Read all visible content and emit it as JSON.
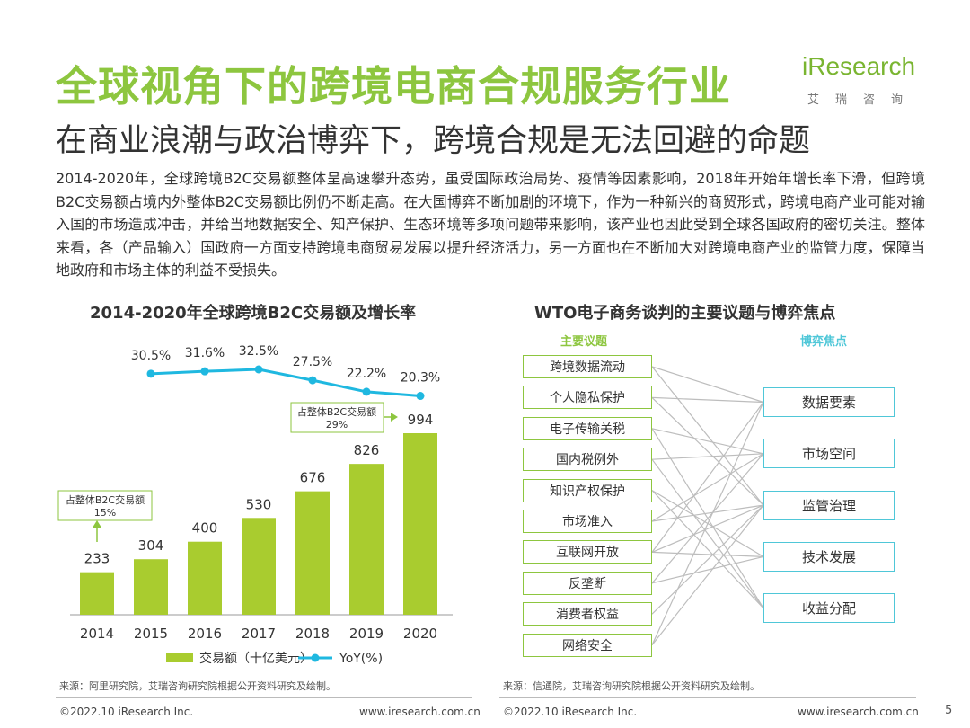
{
  "title": "全球视角下的跨境电商合规服务行业",
  "subtitle": "在商业浪潮与政治博弈下，跨境合规是无法回避的命题",
  "logo": {
    "main_i": "i",
    "main_rest": "Research",
    "sub": "艾瑞咨询"
  },
  "intro": "2014-2020年，全球跨境B2C交易额整体呈高速攀升态势，虽受国际政治局势、疫情等因素影响，2018年开始年增长率下滑，但跨境B2C交易额占境内外整体B2C交易额比例仍不断走高。在大国博弈不断加剧的环境下，作为一种新兴的商贸形式，跨境电商产业可能对输入国的市场造成冲击，并给当地数据安全、知产保护、生态环境等多项问题带来影响，该产业也因此受到全球各国政府的密切关注。整体来看，各（产品输入）国政府一方面支持跨境电商贸易发展以提升经济活力，另一方面也在不断加大对跨境电商产业的监管力度，保障当地政府和市场主体的利益不受损失。",
  "chart_data": {
    "type": "bar",
    "title": "2014-2020年全球跨境B2C交易额及增长率",
    "categories": [
      "2014",
      "2015",
      "2016",
      "2017",
      "2018",
      "2019",
      "2020"
    ],
    "series": [
      {
        "name": "交易额（十亿美元）",
        "type": "bar",
        "values": [
          233,
          304,
          400,
          530,
          676,
          826,
          994
        ],
        "labels": [
          "233",
          "304",
          "400",
          "530",
          "676",
          "826",
          "994"
        ],
        "color": "#a9cc2f"
      },
      {
        "name": "YoY(%)",
        "type": "line",
        "x": [
          "2015",
          "2016",
          "2017",
          "2018",
          "2019",
          "2020"
        ],
        "values": [
          30.5,
          31.6,
          32.5,
          27.5,
          22.2,
          20.3
        ],
        "labels": [
          "30.5%",
          "31.6%",
          "32.5%",
          "27.5%",
          "22.2%",
          "20.3%"
        ],
        "color": "#1fb8e0"
      }
    ],
    "annotations": [
      {
        "x": "2014",
        "line1": "占整体B2C交易额",
        "line2": "15%"
      },
      {
        "x": "2020",
        "line1": "占整体B2C交易额",
        "line2": "29%"
      }
    ],
    "legend_position": "bottom",
    "grid": false
  },
  "wto": {
    "title": "WTO电子商务谈判的主要议题与博弈焦点",
    "topics_header": "主要议题",
    "focus_header": "博弈焦点",
    "topics": [
      "跨境数据流动",
      "个人隐私保护",
      "电子传输关税",
      "国内税例外",
      "知识产权保护",
      "市场准入",
      "互联网开放",
      "反垄断",
      "消费者权益",
      "网络安全"
    ],
    "focus": [
      "数据要素",
      "市场空间",
      "监管治理",
      "技术发展",
      "收益分配"
    ],
    "links": [
      [
        0,
        0
      ],
      [
        0,
        2
      ],
      [
        1,
        0
      ],
      [
        1,
        2
      ],
      [
        2,
        1
      ],
      [
        2,
        4
      ],
      [
        3,
        1
      ],
      [
        3,
        4
      ],
      [
        4,
        3
      ],
      [
        4,
        4
      ],
      [
        5,
        1
      ],
      [
        5,
        2
      ],
      [
        6,
        0
      ],
      [
        6,
        2
      ],
      [
        6,
        3
      ],
      [
        7,
        1
      ],
      [
        7,
        3
      ],
      [
        8,
        2
      ],
      [
        9,
        0
      ],
      [
        9,
        2
      ]
    ]
  },
  "sources": {
    "left": "来源：阿里研究院，艾瑞咨询研究院根据公开资料研究及绘制。",
    "right": "来源：信通院，艾瑞咨询研究院根据公开资料研究及绘制。"
  },
  "footer": {
    "copyright_left": "©2022.10 iResearch Inc.",
    "site_left": "www.iresearch.com.cn",
    "copyright_right": "©2022.10 iResearch Inc.",
    "site_right": "www.iresearch.com.cn",
    "page_number": "5"
  }
}
